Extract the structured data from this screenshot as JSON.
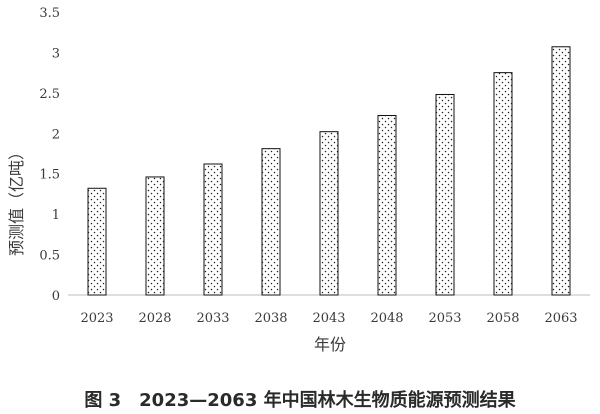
{
  "chart_data": {
    "type": "bar",
    "categories": [
      "2023",
      "2028",
      "2033",
      "2038",
      "2043",
      "2048",
      "2053",
      "2058",
      "2063"
    ],
    "values": [
      1.32,
      1.46,
      1.62,
      1.81,
      2.02,
      2.22,
      2.48,
      2.75,
      3.07
    ],
    "xlabel": "年份",
    "ylabel": "预测值（亿吨）",
    "ylim": [
      0,
      3.5
    ],
    "yticks": [
      "0",
      "0.5",
      "1",
      "1.5",
      "2",
      "2.5",
      "3",
      "3.5"
    ],
    "grid": false,
    "legend": "none",
    "bar_pattern": "dotted",
    "colors": {
      "bar_fill": "#ffffff",
      "bar_dot": "#222222",
      "bar_stroke": "#111111",
      "axis": "#bdbdbd"
    }
  },
  "caption": "图 3　2023—2063 年中国林木生物质能源预测结果"
}
